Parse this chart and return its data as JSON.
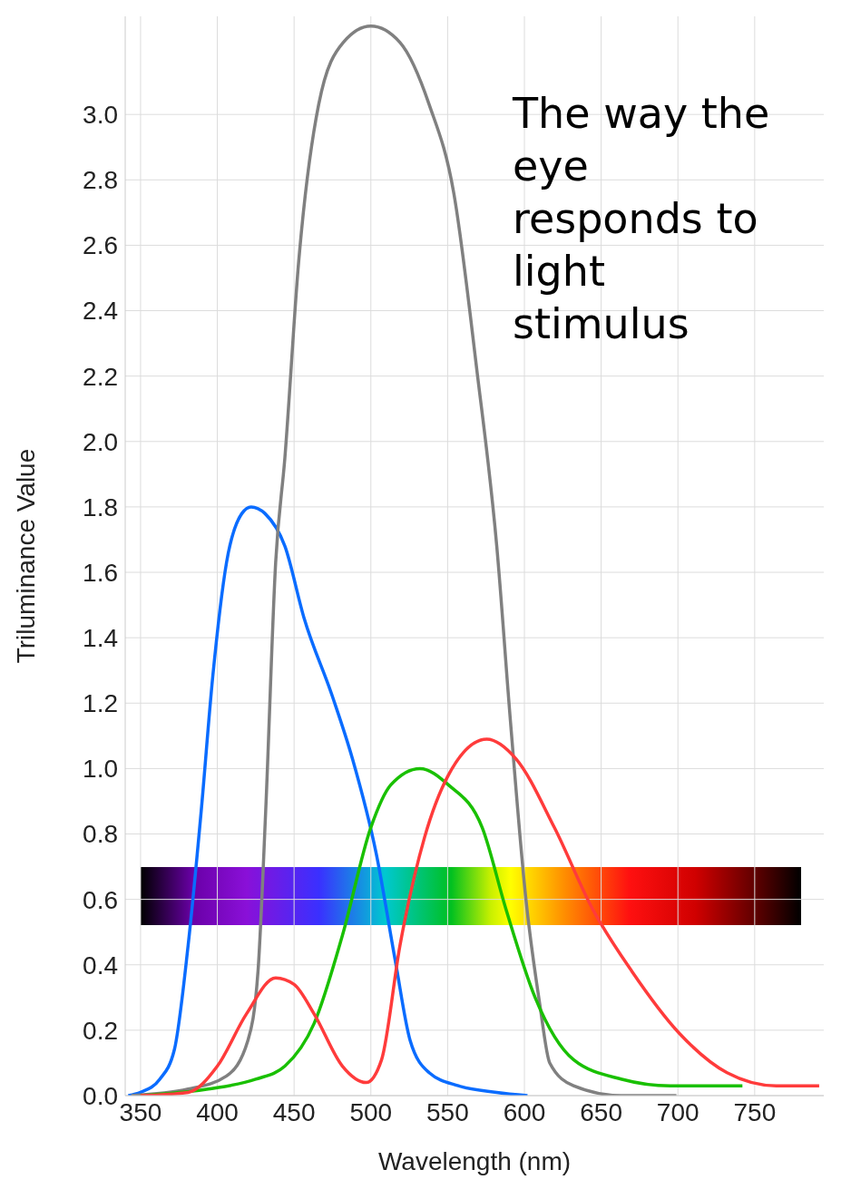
{
  "chart_data": {
    "type": "line",
    "xlabel": "Wavelength (nm)",
    "ylabel": "Triluminance Value",
    "annotations": [
      "The way the eye responds to light stimulus"
    ],
    "xlim": [
      340,
      795
    ],
    "ylim": [
      0,
      3.3
    ],
    "xticks": [
      350,
      400,
      450,
      500,
      550,
      600,
      650,
      700,
      750
    ],
    "yticks": [
      {
        "value": 0,
        "label": "0.0"
      },
      0.2,
      0.4,
      0.6,
      0.8,
      {
        "value": 1,
        "label": "1.0"
      },
      1.2,
      1.4,
      1.6,
      1.8,
      {
        "value": 2,
        "label": "2.0"
      },
      2.2,
      2.4,
      2.6,
      2.8,
      {
        "value": 3,
        "label": "3.0"
      }
    ],
    "grid": true,
    "marker": "none",
    "line_style": "solid",
    "series": [
      {
        "color": "#0a6cff",
        "x": [
          342,
          350,
          362.5,
          372,
          381,
          389.5,
          397,
          406,
          416,
          422,
          431,
          444,
          456.5,
          475,
          488,
          503.5,
          516,
          525.5,
          538,
          557,
          582,
          602
        ],
        "values": [
          0,
          0.01,
          0.05,
          0.14,
          0.46,
          0.87,
          1.28,
          1.63,
          1.78,
          1.8,
          1.78,
          1.68,
          1.46,
          1.22,
          1.03,
          0.74,
          0.41,
          0.17,
          0.07,
          0.03,
          0.01,
          0
        ]
      },
      {
        "color": "#808080",
        "x": [
          344,
          381,
          406,
          420,
          426.5,
          431.5,
          438,
          444,
          453,
          466,
          482,
          500,
          519,
          538,
          554,
          569,
          582,
          591,
          601,
          610,
          616.5,
          632,
          663,
          699
        ],
        "values": [
          0,
          0.02,
          0.06,
          0.17,
          0.38,
          0.87,
          1.63,
          1.95,
          2.55,
          3.03,
          3.22,
          3.27,
          3.22,
          3.03,
          2.76,
          2.22,
          1.68,
          1.14,
          0.6,
          0.28,
          0.1,
          0.03,
          0,
          0
        ]
      },
      {
        "color": "#19c000",
        "x": [
          350,
          394,
          425,
          444,
          463,
          481.5,
          500,
          513,
          532,
          550.5,
          572.5,
          588,
          607,
          632,
          663.5,
          695,
          742
        ],
        "values": [
          0,
          0.02,
          0.05,
          0.09,
          0.22,
          0.49,
          0.82,
          0.95,
          1,
          0.95,
          0.82,
          0.57,
          0.3,
          0.11,
          0.05,
          0.03,
          0.03
        ]
      },
      {
        "color": "#ff3b3b",
        "x": [
          350,
          381,
          400,
          419,
          438,
          450,
          463,
          481.5,
          497,
          507,
          519,
          535,
          550.5,
          575.5,
          594.5,
          619.5,
          644.5,
          670,
          701,
          732,
          764,
          792
        ],
        "values": [
          0,
          0.01,
          0.09,
          0.25,
          0.36,
          0.34,
          0.25,
          0.09,
          0.04,
          0.11,
          0.46,
          0.79,
          0.98,
          1.09,
          1.03,
          0.82,
          0.57,
          0.38,
          0.19,
          0.07,
          0.03,
          0.03
        ]
      }
    ]
  }
}
